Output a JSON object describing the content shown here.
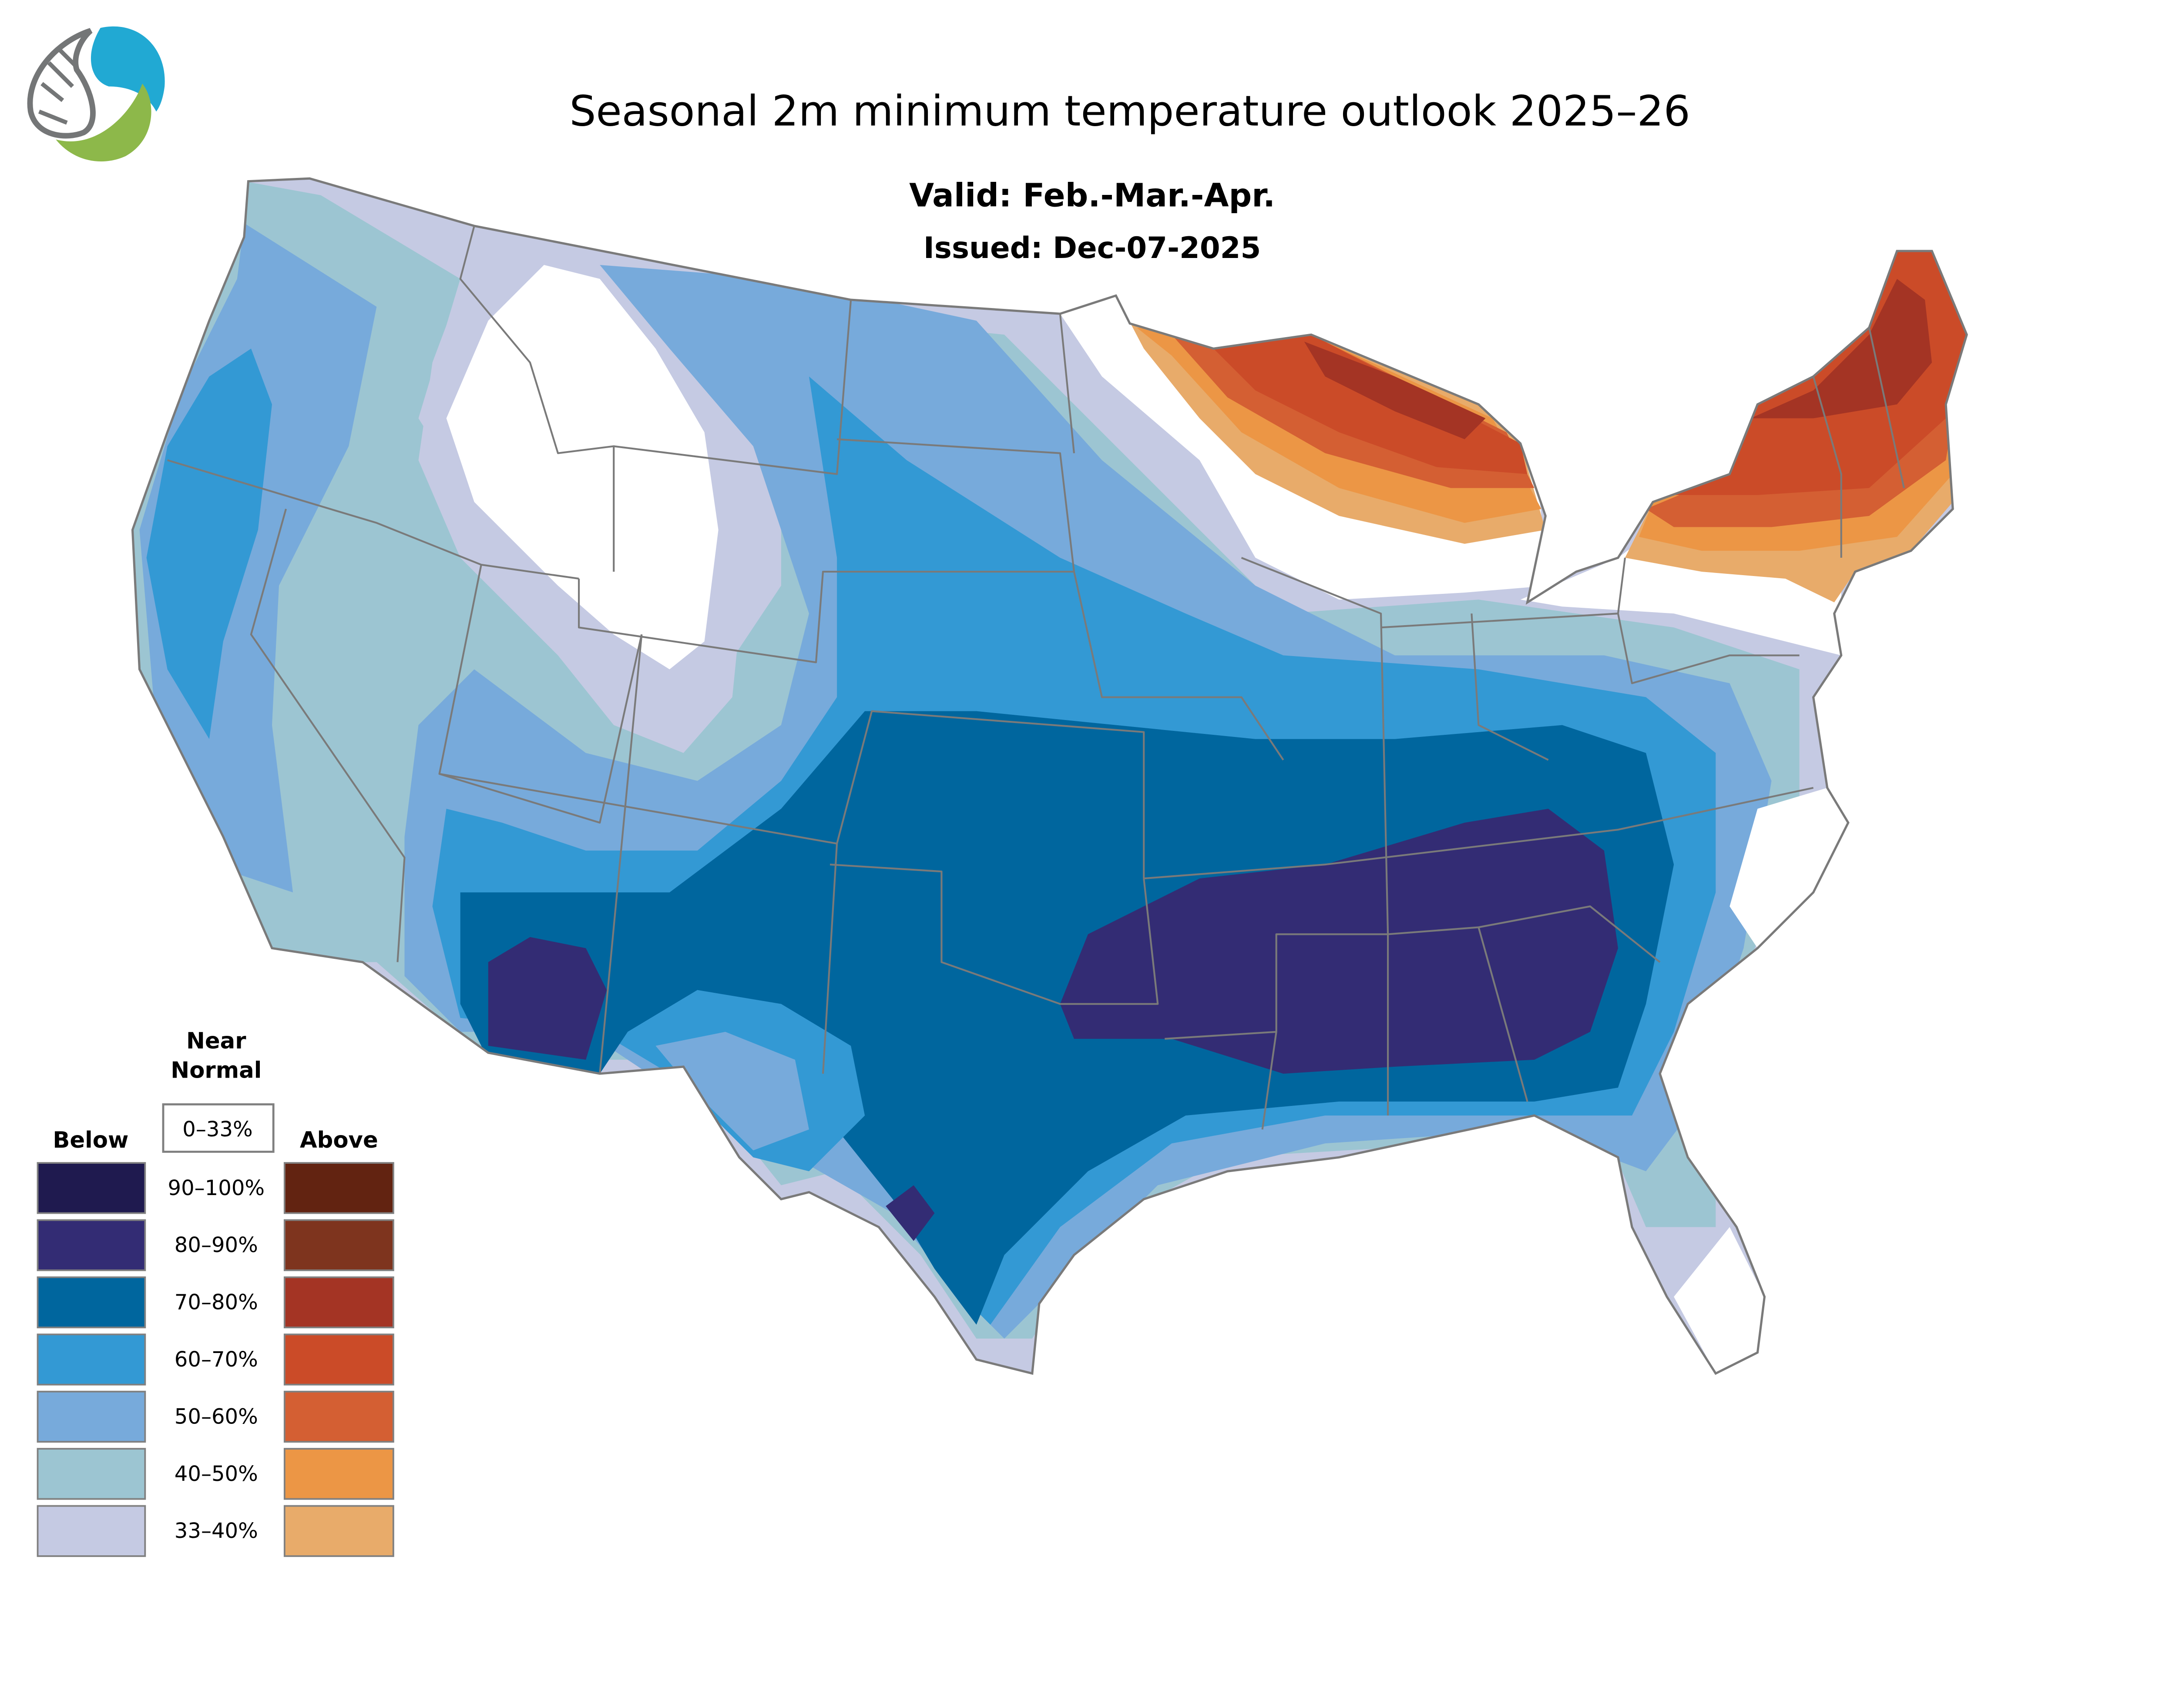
{
  "title": "Seasonal 2m minimum temperature outlook 2025–26",
  "valid": "Valid: Feb.-Mar.-Apr.",
  "issued": "Issued: Dec-07-2025",
  "logo": {
    "icon": "water-circuit-leaf-logo",
    "colors": [
      "#21a9d3",
      "#8db84a",
      "#747677"
    ]
  },
  "legend": {
    "near_normal_title_1": "Near",
    "near_normal_title_2": "Normal",
    "near_normal_range": "0–33%",
    "below_label": "Below",
    "above_label": "Above",
    "ranges": [
      "90–100%",
      "80–90%",
      "70–80%",
      "60–70%",
      "50–60%",
      "40–50%",
      "33–40%"
    ],
    "below_colors": [
      "#1f1a4f",
      "#332c74",
      "#00669e",
      "#3399d4",
      "#77aadb",
      "#9cc5d2",
      "#c5cae3"
    ],
    "above_colors": [
      "#622311",
      "#7e341e",
      "#a43424",
      "#cb4b28",
      "#d45f33",
      "#ec9645",
      "#e8ab6a"
    ]
  }
}
